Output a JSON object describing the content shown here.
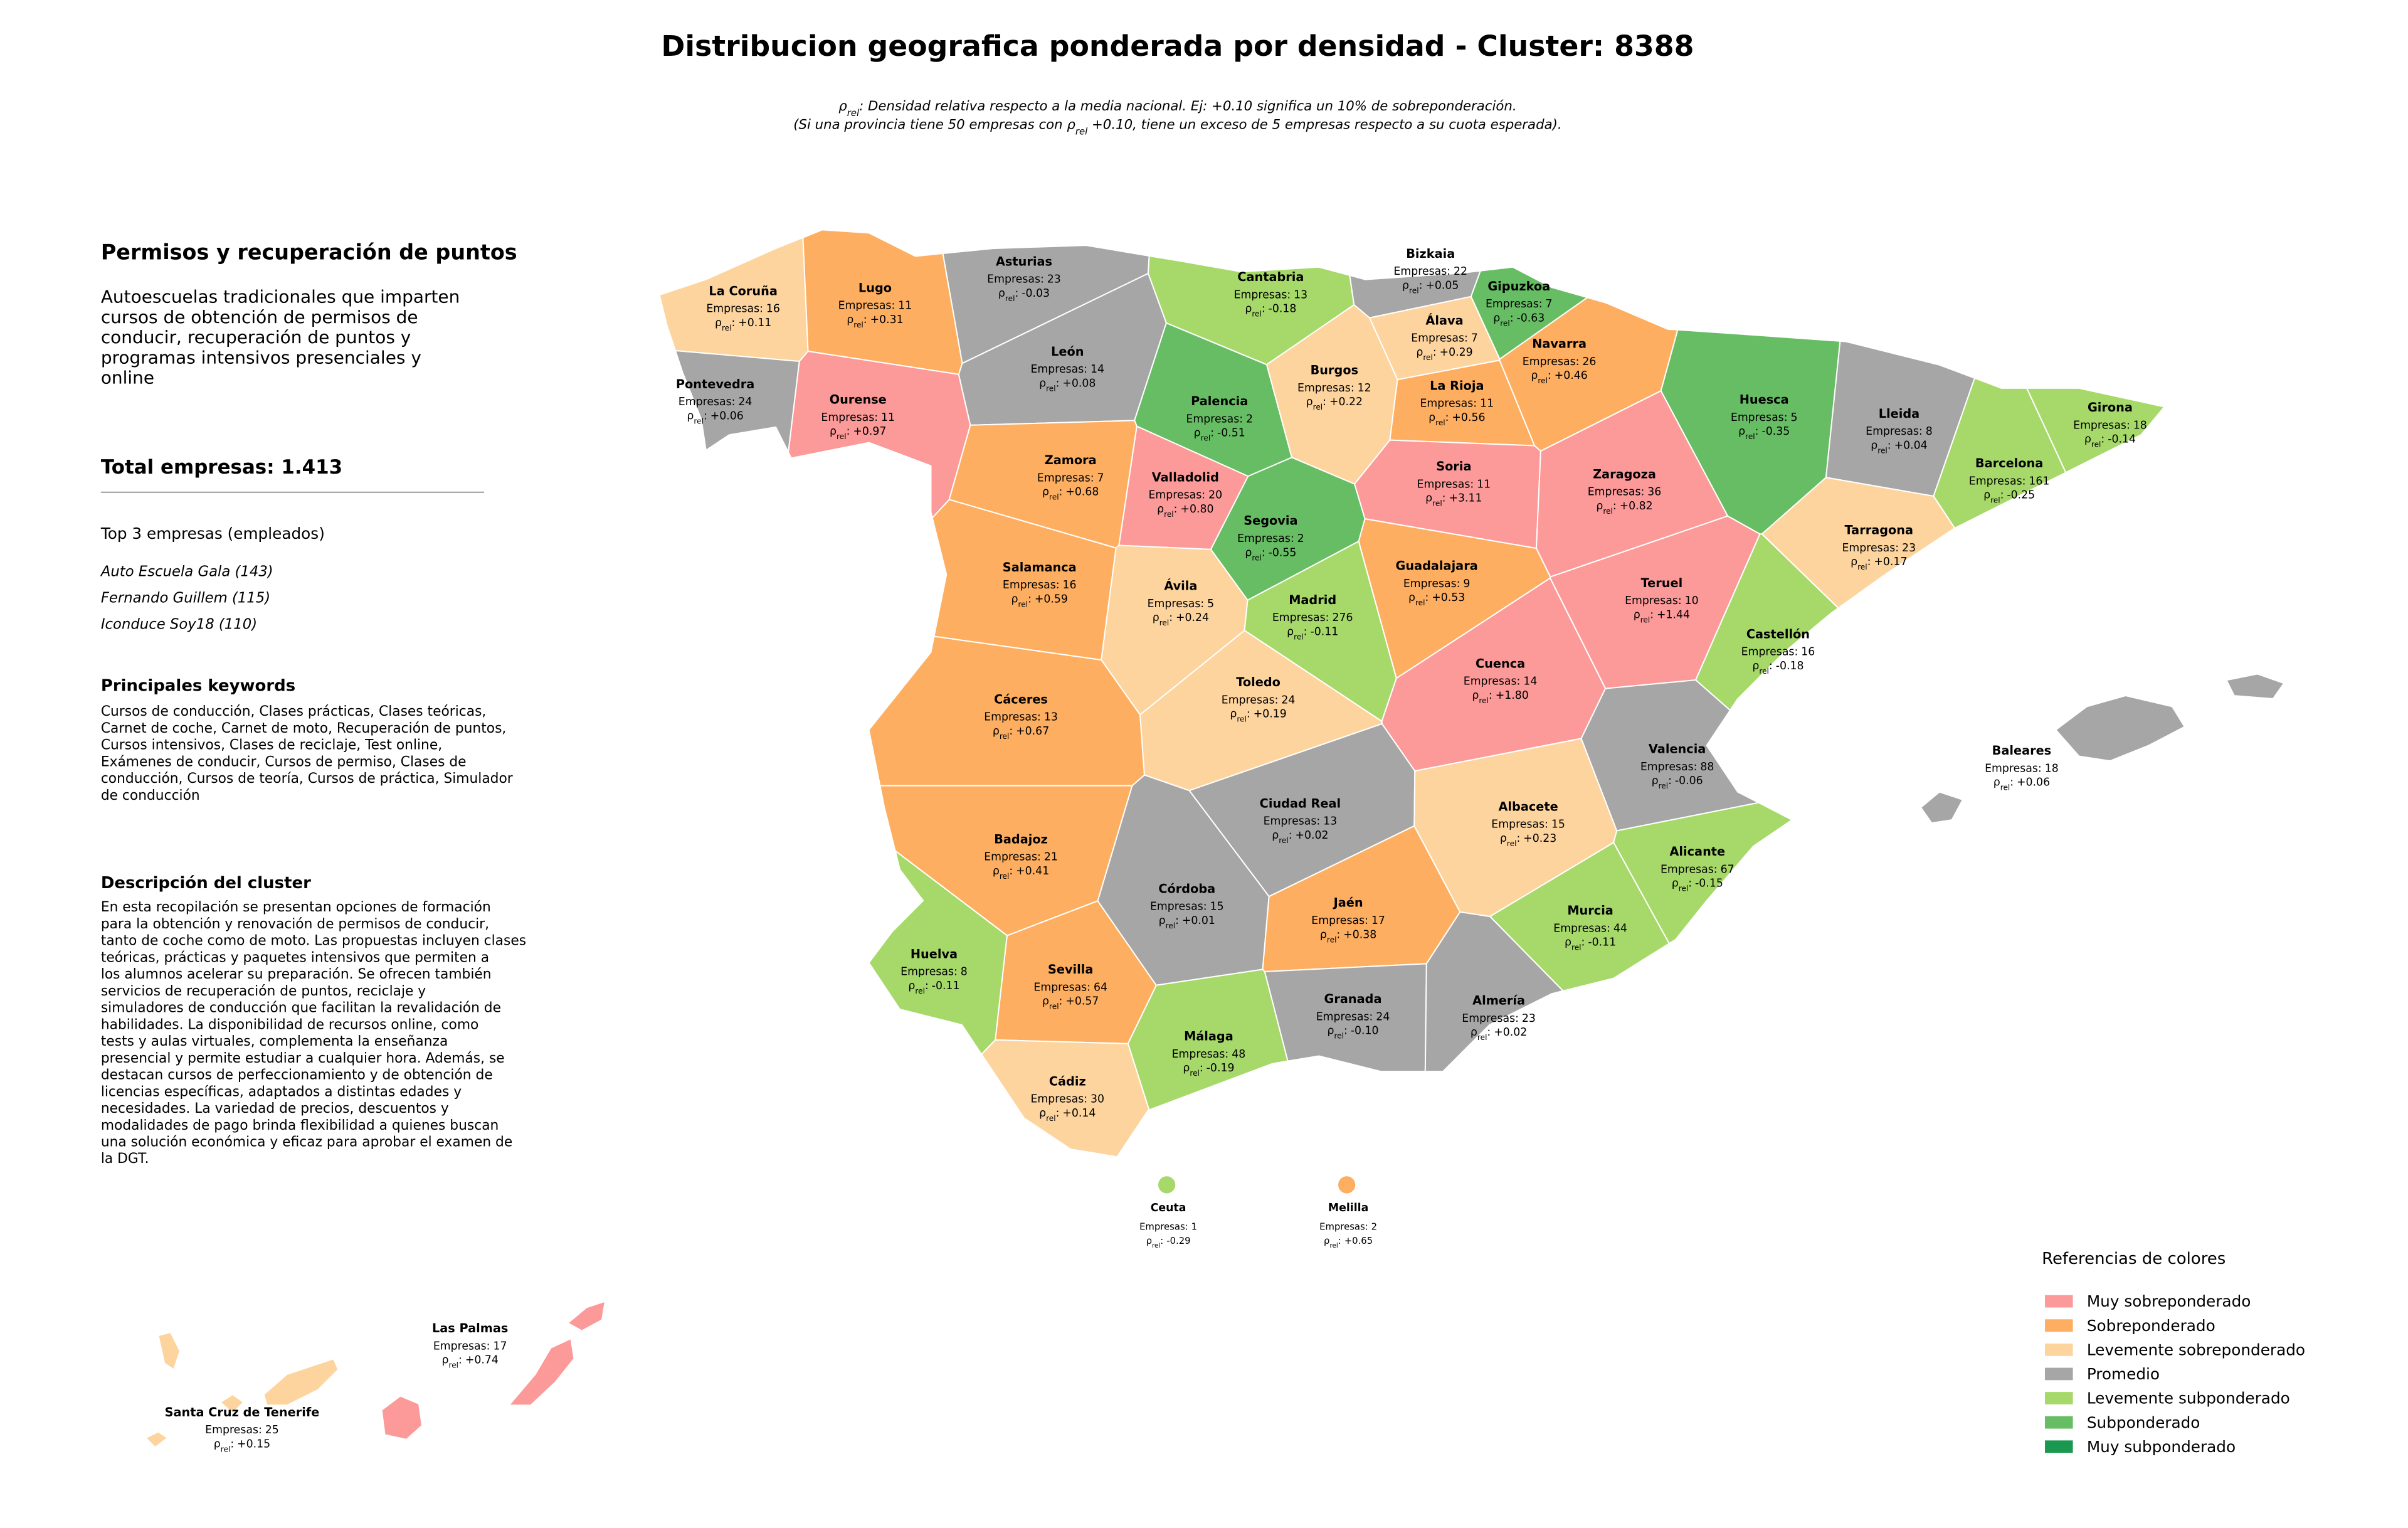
{
  "title": "Distribucion geografica ponderada por densidad - Cluster: 8388",
  "note": {
    "line1": [
      "ρ",
      "rel",
      ": Densidad relativa respecto a la media nacional. Ej: +0.10 significa un 10% de sobreponderación."
    ],
    "line2": [
      "(Si una provincia tiene 50 empresas con ρ",
      "rel",
      " +0.10, tiene un exceso de 5 empresas respecto a su cuota esperada)."
    ]
  },
  "panel": {
    "heading": "Permisos y recuperación de puntos",
    "summary_lines": [
      "Autoescuelas tradicionales que imparten",
      "cursos de obtención de permisos de",
      "conducir, recuperación de puntos y",
      "programas intensivos presenciales y",
      "online"
    ],
    "total": "Total empresas: 1.413",
    "top_title": "Top 3 empresas (empleados)",
    "top": [
      "Auto Escuela Gala (143)",
      "Fernando Guillem (115)",
      "Iconduce Soy18 (110)"
    ],
    "keywords_title": "Principales keywords",
    "keywords_lines": [
      "Cursos de conducción, Clases prácticas, Clases teóricas,",
      "Carnet de coche, Carnet de moto, Recuperación de puntos,",
      "Cursos intensivos, Clases de reciclaje, Test online,",
      "Exámenes de conducir, Cursos de permiso, Clases de",
      "conducción, Cursos de teoría, Cursos de práctica, Simulador",
      "de conducción"
    ],
    "description_title": "Descripción del cluster",
    "description_lines": [
      "En esta recopilación se presentan opciones de formación",
      "para la obtención y renovación de permisos de conducir,",
      "tanto de coche como de moto. Las propuestas incluyen clases",
      "teóricas, prácticas y paquetes intensivos que permiten a",
      "los alumnos acelerar su preparación. Se ofrecen también",
      "servicios de recuperación de puntos, reciclaje y",
      "simuladores de conducción que facilitan la revalidación de",
      "habilidades. La disponibilidad de recursos online, como",
      "tests y aulas virtuales, complementa la enseñanza",
      "presencial y permite estudiar a cualquier hora. Además, se",
      "destacan cursos de perfeccionamiento y de obtención de",
      "licencias específicas, adaptados a distintas edades y",
      "necesidades. La variedad de precios, descuentos y",
      "modalidades de pago brinda flexibilidad a quienes buscan",
      "una solución económica y eficaz para aprobar el examen de",
      "la DGT."
    ]
  },
  "labels": {
    "companies": "Empresas:",
    "rho_symbol": "ρ",
    "rho_sub": "rel",
    "rho_sep": ":"
  },
  "map": {
    "provinces": [
      {
        "name": "La Coruña",
        "empresas": 16,
        "rho": 0.11,
        "rho_label": "+0.11",
        "color": "#fdd49e"
      },
      {
        "name": "Lugo",
        "empresas": 11,
        "rho": 0.31,
        "rho_label": "+0.31",
        "color": "#fdae61"
      },
      {
        "name": "Asturias",
        "empresas": 23,
        "rho": -0.03,
        "rho_label": "-0.03",
        "color": "#a6a6a6"
      },
      {
        "name": "Cantabria",
        "empresas": 13,
        "rho": -0.18,
        "rho_label": "-0.18",
        "color": "#a6d96a"
      },
      {
        "name": "Bizkaia",
        "empresas": 22,
        "rho": 0.05,
        "rho_label": "+0.05",
        "color": "#a6a6a6"
      },
      {
        "name": "Gipuzkoa",
        "empresas": 7,
        "rho": -0.63,
        "rho_label": "-0.63",
        "color": "#66bd63"
      },
      {
        "name": "Álava",
        "empresas": 7,
        "rho": 0.29,
        "rho_label": "+0.29",
        "color": "#fdd49e"
      },
      {
        "name": "Navarra",
        "empresas": 26,
        "rho": 0.46,
        "rho_label": "+0.46",
        "color": "#fdae61"
      },
      {
        "name": "Pontevedra",
        "empresas": 24,
        "rho": 0.06,
        "rho_label": "+0.06",
        "color": "#a6a6a6"
      },
      {
        "name": "Ourense",
        "empresas": 11,
        "rho": 0.97,
        "rho_label": "+0.97",
        "color": "#fb9a99"
      },
      {
        "name": "León",
        "empresas": 14,
        "rho": 0.08,
        "rho_label": "+0.08",
        "color": "#a6a6a6"
      },
      {
        "name": "Palencia",
        "empresas": 2,
        "rho": -0.51,
        "rho_label": "-0.51",
        "color": "#66bd63"
      },
      {
        "name": "Burgos",
        "empresas": 12,
        "rho": 0.22,
        "rho_label": "+0.22",
        "color": "#fdd49e"
      },
      {
        "name": "La Rioja",
        "empresas": 11,
        "rho": 0.56,
        "rho_label": "+0.56",
        "color": "#fdae61"
      },
      {
        "name": "Huesca",
        "empresas": 5,
        "rho": -0.35,
        "rho_label": "-0.35",
        "color": "#66bd63"
      },
      {
        "name": "Lleida",
        "empresas": 8,
        "rho": 0.04,
        "rho_label": "+0.04",
        "color": "#a6a6a6"
      },
      {
        "name": "Girona",
        "empresas": 18,
        "rho": -0.14,
        "rho_label": "-0.14",
        "color": "#a6d96a"
      },
      {
        "name": "Barcelona",
        "empresas": 161,
        "rho": -0.25,
        "rho_label": "-0.25",
        "color": "#a6d96a"
      },
      {
        "name": "Zamora",
        "empresas": 7,
        "rho": 0.68,
        "rho_label": "+0.68",
        "color": "#fdae61"
      },
      {
        "name": "Valladolid",
        "empresas": 20,
        "rho": 0.8,
        "rho_label": "+0.80",
        "color": "#fb9a99"
      },
      {
        "name": "Soria",
        "empresas": 11,
        "rho": 3.11,
        "rho_label": "+3.11",
        "color": "#fb9a99"
      },
      {
        "name": "Zaragoza",
        "empresas": 36,
        "rho": 0.82,
        "rho_label": "+0.82",
        "color": "#fb9a99"
      },
      {
        "name": "Segovia",
        "empresas": 2,
        "rho": -0.55,
        "rho_label": "-0.55",
        "color": "#66bd63"
      },
      {
        "name": "Tarragona",
        "empresas": 23,
        "rho": 0.17,
        "rho_label": "+0.17",
        "color": "#fdd49e"
      },
      {
        "name": "Salamanca",
        "empresas": 16,
        "rho": 0.59,
        "rho_label": "+0.59",
        "color": "#fdae61"
      },
      {
        "name": "Ávila",
        "empresas": 5,
        "rho": 0.24,
        "rho_label": "+0.24",
        "color": "#fdd49e"
      },
      {
        "name": "Madrid",
        "empresas": 276,
        "rho": -0.11,
        "rho_label": "-0.11",
        "color": "#a6d96a"
      },
      {
        "name": "Guadalajara",
        "empresas": 9,
        "rho": 0.53,
        "rho_label": "+0.53",
        "color": "#fdae61"
      },
      {
        "name": "Teruel",
        "empresas": 10,
        "rho": 1.44,
        "rho_label": "+1.44",
        "color": "#fb9a99"
      },
      {
        "name": "Castellón",
        "empresas": 16,
        "rho": -0.18,
        "rho_label": "-0.18",
        "color": "#a6d96a"
      },
      {
        "name": "Cuenca",
        "empresas": 14,
        "rho": 1.8,
        "rho_label": "+1.80",
        "color": "#fb9a99"
      },
      {
        "name": "Cáceres",
        "empresas": 13,
        "rho": 0.67,
        "rho_label": "+0.67",
        "color": "#fdae61"
      },
      {
        "name": "Toledo",
        "empresas": 24,
        "rho": 0.19,
        "rho_label": "+0.19",
        "color": "#fdd49e"
      },
      {
        "name": "Valencia",
        "empresas": 88,
        "rho": -0.06,
        "rho_label": "-0.06",
        "color": "#a6a6a6"
      },
      {
        "name": "Baleares",
        "empresas": 18,
        "rho": 0.06,
        "rho_label": "+0.06",
        "color": "#a6a6a6"
      },
      {
        "name": "Ciudad Real",
        "empresas": 13,
        "rho": 0.02,
        "rho_label": "+0.02",
        "color": "#a6a6a6"
      },
      {
        "name": "Albacete",
        "empresas": 15,
        "rho": 0.23,
        "rho_label": "+0.23",
        "color": "#fdd49e"
      },
      {
        "name": "Badajoz",
        "empresas": 21,
        "rho": 0.41,
        "rho_label": "+0.41",
        "color": "#fdae61"
      },
      {
        "name": "Alicante",
        "empresas": 67,
        "rho": -0.15,
        "rho_label": "-0.15",
        "color": "#a6d96a"
      },
      {
        "name": "Córdoba",
        "empresas": 15,
        "rho": 0.01,
        "rho_label": "+0.01",
        "color": "#a6a6a6"
      },
      {
        "name": "Jaén",
        "empresas": 17,
        "rho": 0.38,
        "rho_label": "+0.38",
        "color": "#fdae61"
      },
      {
        "name": "Murcia",
        "empresas": 44,
        "rho": -0.11,
        "rho_label": "-0.11",
        "color": "#a6d96a"
      },
      {
        "name": "Huelva",
        "empresas": 8,
        "rho": -0.11,
        "rho_label": "-0.11",
        "color": "#a6d96a"
      },
      {
        "name": "Sevilla",
        "empresas": 64,
        "rho": 0.57,
        "rho_label": "+0.57",
        "color": "#fdae61"
      },
      {
        "name": "Granada",
        "empresas": 24,
        "rho": -0.1,
        "rho_label": "-0.10",
        "color": "#a6a6a6"
      },
      {
        "name": "Almería",
        "empresas": 23,
        "rho": 0.02,
        "rho_label": "+0.02",
        "color": "#a6a6a6"
      },
      {
        "name": "Málaga",
        "empresas": 48,
        "rho": -0.19,
        "rho_label": "-0.19",
        "color": "#a6d96a"
      },
      {
        "name": "Cádiz",
        "empresas": 30,
        "rho": 0.14,
        "rho_label": "+0.14",
        "color": "#fdd49e"
      },
      {
        "name": "Ceuta",
        "empresas": 1,
        "rho": -0.29,
        "rho_label": "-0.29",
        "color": "#a6d96a"
      },
      {
        "name": "Melilla",
        "empresas": 2,
        "rho": 0.65,
        "rho_label": "+0.65",
        "color": "#fdae61"
      },
      {
        "name": "Las Palmas",
        "empresas": 17,
        "rho": 0.74,
        "rho_label": "+0.74",
        "color": "#fb9a99"
      },
      {
        "name": "Santa Cruz de Tenerife",
        "empresas": 25,
        "rho": 0.15,
        "rho_label": "+0.15",
        "color": "#fdd49e"
      }
    ],
    "legend": {
      "title": "Referencias de colores",
      "items": [
        {
          "label": "Muy sobreponderado",
          "color": "#fb9a99"
        },
        {
          "label": "Sobreponderado",
          "color": "#fdae61"
        },
        {
          "label": "Levemente sobreponderado",
          "color": "#fdd49e"
        },
        {
          "label": "Promedio",
          "color": "#a6a6a6"
        },
        {
          "label": "Levemente subponderado",
          "color": "#a6d96a"
        },
        {
          "label": "Subponderado",
          "color": "#66bd63"
        },
        {
          "label": "Muy subponderado",
          "color": "#1a9850"
        }
      ]
    }
  }
}
